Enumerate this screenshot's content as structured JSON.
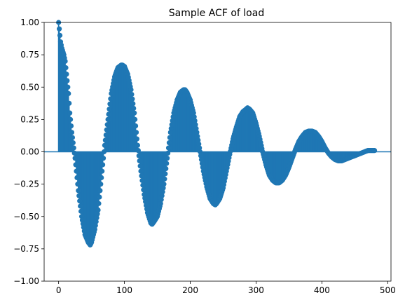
{
  "chart_data": {
    "type": "scatter",
    "title": "Sample ACF of load",
    "xlabel": "",
    "ylabel": "",
    "xlim": [
      -22,
      505
    ],
    "ylim": [
      -1.0,
      1.0
    ],
    "x_ticks": [
      0,
      100,
      200,
      300,
      400,
      500
    ],
    "y_ticks": [
      -1.0,
      -0.75,
      -0.5,
      -0.25,
      0.0,
      0.25,
      0.5,
      0.75,
      1.0
    ],
    "x_tick_labels": [
      "0",
      "100",
      "200",
      "300",
      "400",
      "500"
    ],
    "y_tick_labels": [
      "−1.00",
      "−0.75",
      "−0.50",
      "−0.25",
      "0.00",
      "0.25",
      "0.50",
      "0.75",
      "1.00"
    ],
    "grid": false,
    "legend": false,
    "style": "stem",
    "color": "#1f77b4",
    "lag_start": 0,
    "lag_end": 480,
    "series": [
      {
        "x": [
          0,
          3,
          5,
          8,
          10,
          12,
          15,
          17,
          20,
          25,
          30,
          35,
          40,
          45,
          48,
          50,
          55,
          60,
          65,
          70,
          75,
          80,
          85,
          90,
          95,
          97,
          100,
          105,
          110,
          115,
          120,
          125,
          130,
          135,
          140,
          142,
          145,
          150,
          155,
          160,
          165,
          170,
          175,
          180,
          185,
          190,
          192,
          195,
          200,
          205,
          210,
          215,
          220,
          225,
          230,
          235,
          238,
          240,
          245,
          250,
          255,
          260,
          265,
          270,
          275,
          280,
          285,
          287,
          290,
          295,
          300,
          305,
          310,
          315,
          320,
          325,
          330,
          335,
          340,
          345,
          350,
          355,
          360,
          365,
          370,
          375,
          380,
          383,
          385,
          390,
          395,
          400,
          405,
          410,
          415,
          420,
          425,
          430,
          435,
          440,
          445,
          450,
          455,
          460,
          465,
          470,
          475,
          480
        ],
        "values": [
          1.0,
          0.85,
          0.8,
          0.75,
          0.7,
          0.6,
          0.45,
          0.3,
          0.15,
          -0.05,
          -0.3,
          -0.5,
          -0.64,
          -0.7,
          -0.72,
          -0.7,
          -0.6,
          -0.45,
          -0.2,
          0.05,
          0.25,
          0.45,
          0.58,
          0.65,
          0.67,
          0.67,
          0.66,
          0.6,
          0.48,
          0.3,
          0.05,
          -0.15,
          -0.33,
          -0.47,
          -0.55,
          -0.56,
          -0.54,
          -0.5,
          -0.4,
          -0.25,
          -0.05,
          0.15,
          0.3,
          0.4,
          0.46,
          0.48,
          0.48,
          0.46,
          0.4,
          0.3,
          0.15,
          0.0,
          -0.15,
          -0.27,
          -0.36,
          -0.4,
          -0.41,
          -0.4,
          -0.36,
          -0.28,
          -0.15,
          -0.02,
          0.1,
          0.19,
          0.27,
          0.31,
          0.33,
          0.34,
          0.33,
          0.3,
          0.22,
          0.12,
          0.0,
          -0.1,
          -0.18,
          -0.22,
          -0.24,
          -0.24,
          -0.22,
          -0.18,
          -0.12,
          -0.05,
          0.02,
          0.08,
          0.12,
          0.15,
          0.16,
          0.16,
          0.16,
          0.15,
          0.12,
          0.08,
          0.03,
          -0.01,
          -0.04,
          -0.06,
          -0.07,
          -0.07,
          -0.06,
          -0.05,
          -0.04,
          -0.03,
          -0.02,
          -0.01,
          0.0,
          0.01,
          0.01,
          0.01
        ]
      }
    ]
  }
}
